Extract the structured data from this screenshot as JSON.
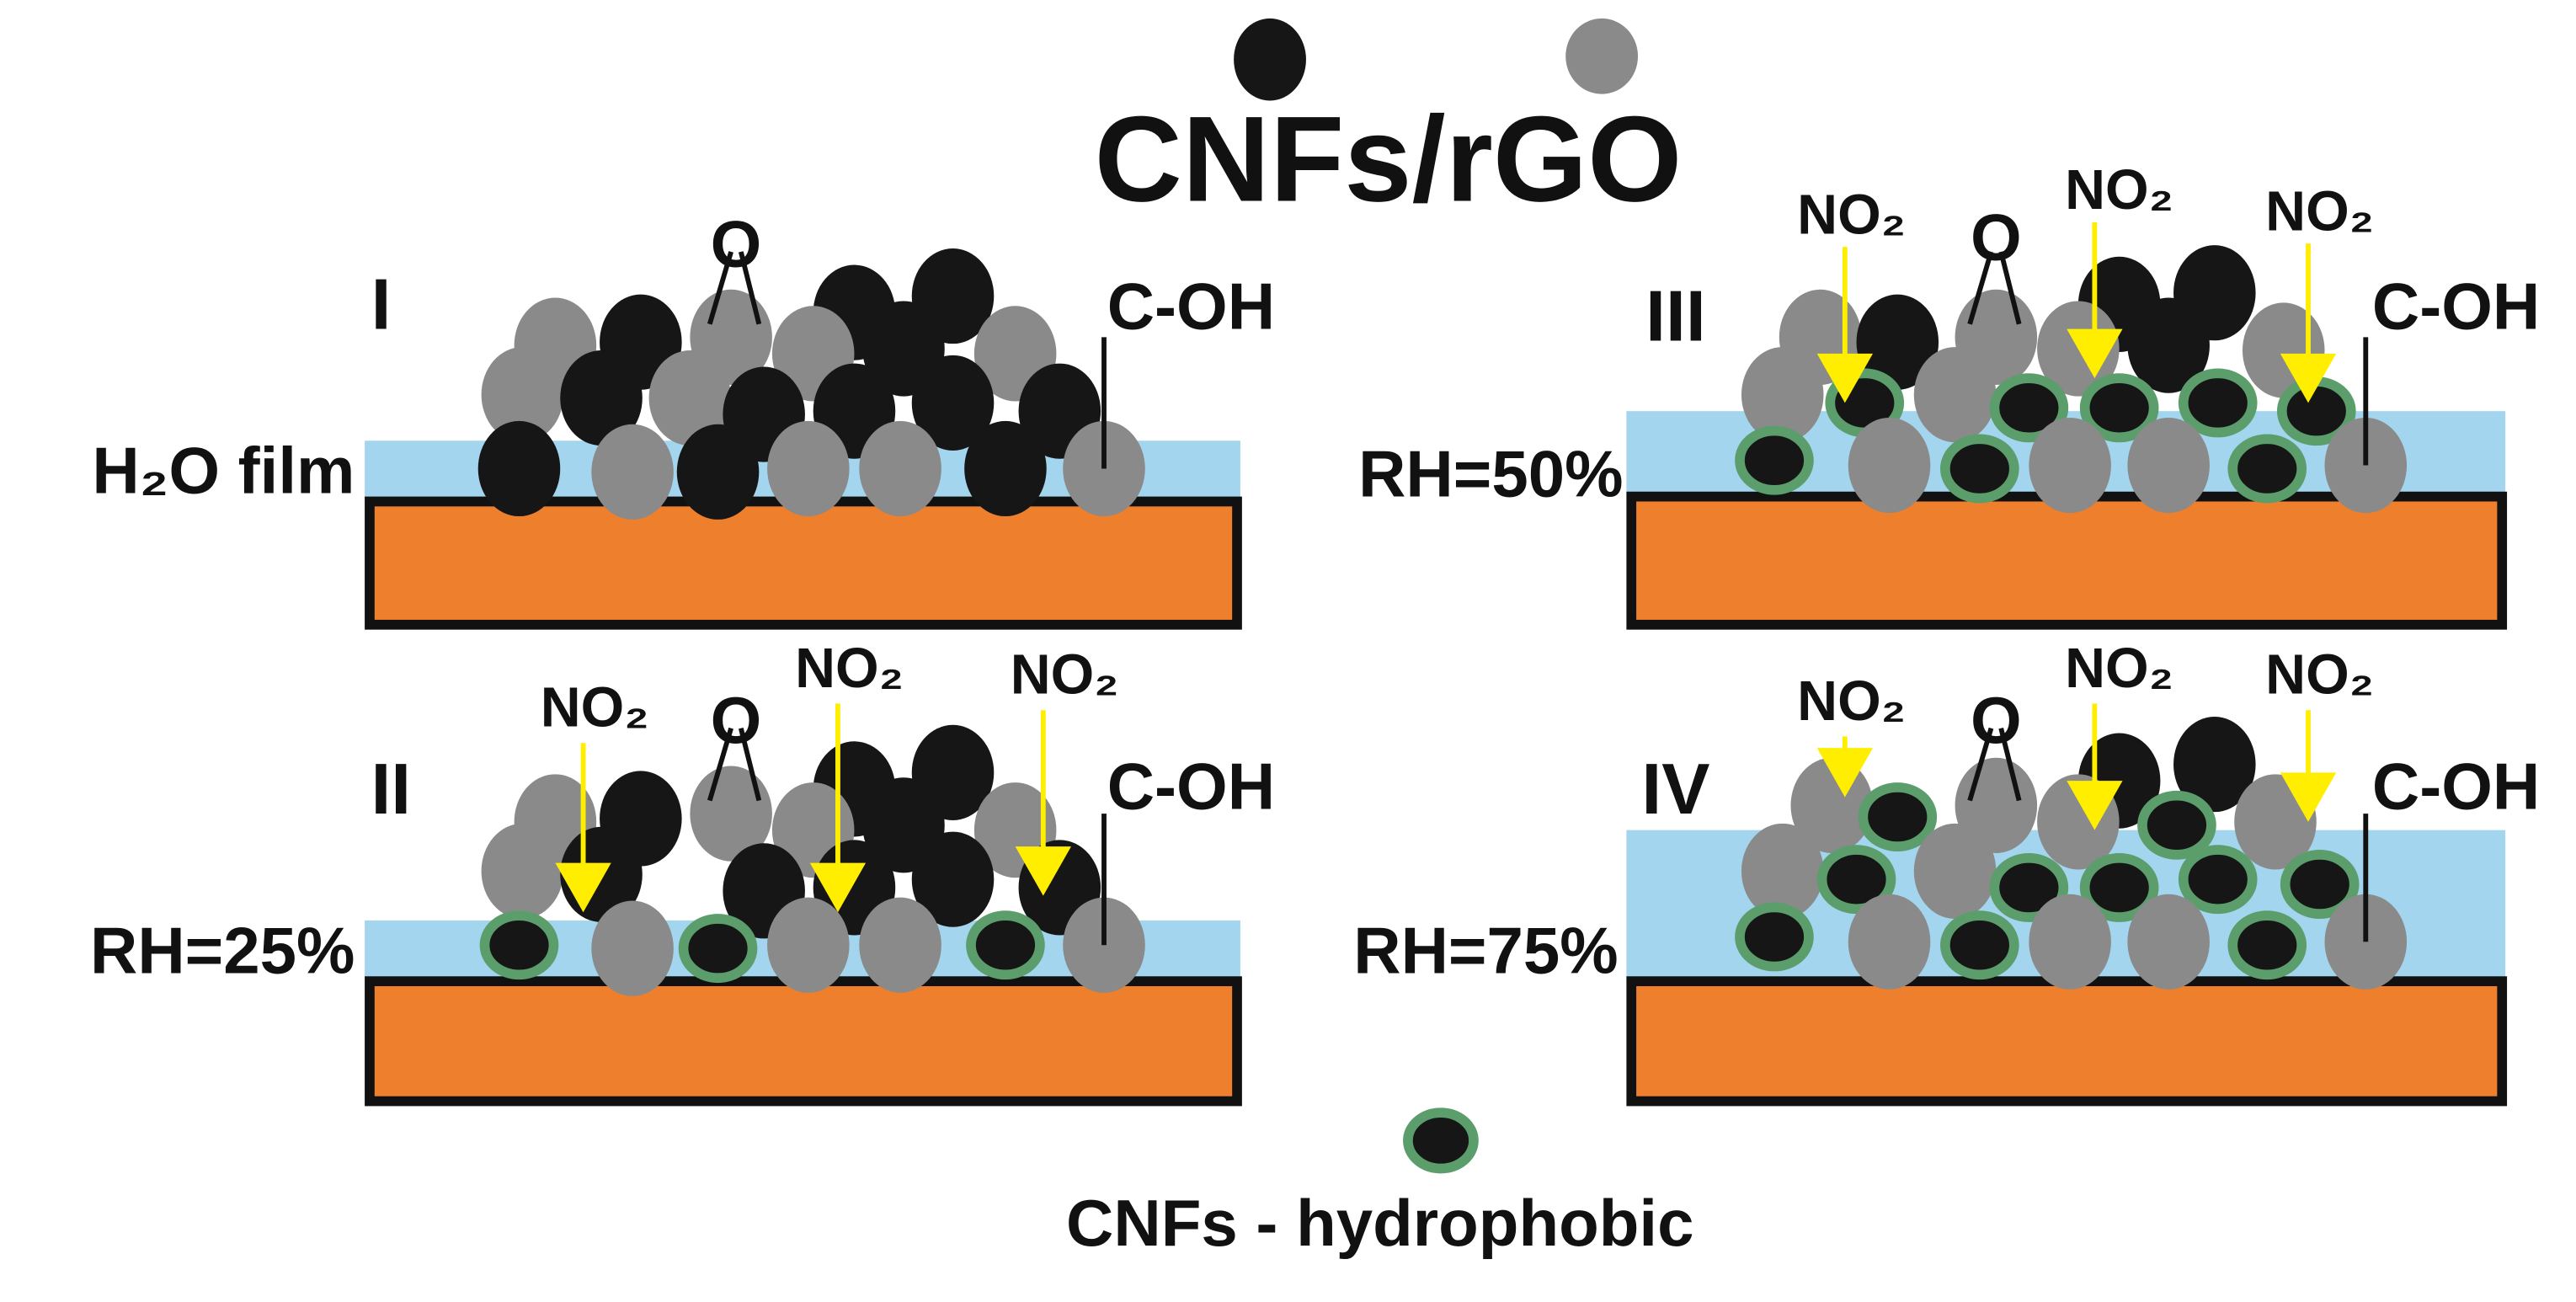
{
  "legend": {
    "title": "CNFs/rGO",
    "hydrophobic_label": "CNFs - hydrophobic"
  },
  "colors": {
    "cnf": "#161616",
    "rgo": "#898a89",
    "water": "#a3d5ee",
    "substrate": "#ee7f2d",
    "hydrophobic_ring": "#5b9e6c",
    "arrow": "#ffee00"
  },
  "panels": [
    {
      "numeral": "I",
      "condition": "H₂O film",
      "oxygen": "O",
      "hydroxyl": "C-OH",
      "gas": []
    },
    {
      "numeral": "II",
      "condition": "RH=25%",
      "oxygen": "O",
      "hydroxyl": "C-OH",
      "gas": [
        "NO₂",
        "NO₂",
        "NO₂"
      ]
    },
    {
      "numeral": "III",
      "condition": "RH=50%",
      "oxygen": "O",
      "hydroxyl": "C-OH",
      "gas": [
        "NO₂",
        "NO₂",
        "NO₂"
      ]
    },
    {
      "numeral": "IV",
      "condition": "RH=75%",
      "oxygen": "O",
      "hydroxyl": "C-OH",
      "gas": [
        "NO₂",
        "NO₂",
        "NO₂"
      ]
    }
  ]
}
